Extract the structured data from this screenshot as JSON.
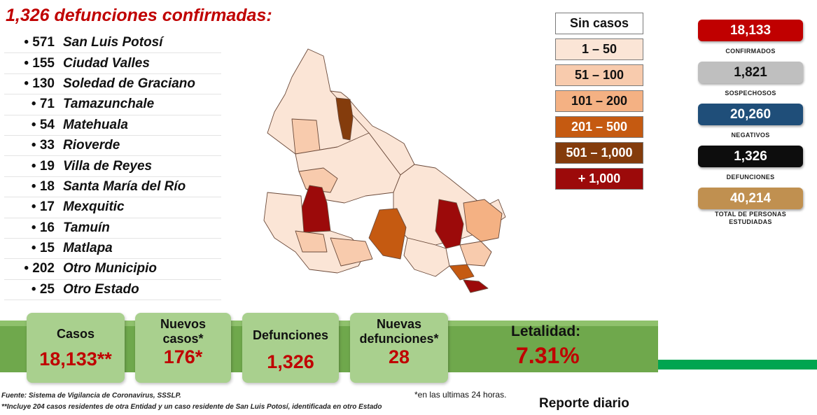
{
  "title": "1,326 defunciones confirmadas:",
  "municipalities": [
    {
      "count": "571",
      "name": "San Luis Potosí"
    },
    {
      "count": "155",
      "name": "Ciudad Valles"
    },
    {
      "count": "130",
      "name": "Soledad de Graciano"
    },
    {
      "count": "71",
      "name": "Tamazunchale"
    },
    {
      "count": "54",
      "name": "Matehuala"
    },
    {
      "count": "33",
      "name": "Rioverde"
    },
    {
      "count": "19",
      "name": "Villa de Reyes"
    },
    {
      "count": "18",
      "name": "Santa María del Río"
    },
    {
      "count": "17",
      "name": "Mexquitic"
    },
    {
      "count": "16",
      "name": "Tamuín"
    },
    {
      "count": "15",
      "name": "Matlapa"
    },
    {
      "count": "202",
      "name": "Otro Municipio"
    },
    {
      "count": "25",
      "name": "Otro Estado"
    }
  ],
  "legend": [
    {
      "label": "Sin casos",
      "color": "#ffffff",
      "text_color": "#111111"
    },
    {
      "label": "1 – 50",
      "color": "#fbe5d6",
      "text_color": "#111111"
    },
    {
      "label": "51 – 100",
      "color": "#f8cbad",
      "text_color": "#111111"
    },
    {
      "label": "101 – 200",
      "color": "#f4b183",
      "text_color": "#111111"
    },
    {
      "label": "201 – 500",
      "color": "#c55a11",
      "text_color": "#ffffff"
    },
    {
      "label": "501 – 1,000",
      "color": "#843c0c",
      "text_color": "#ffffff"
    },
    {
      "label": "+ 1,000",
      "color": "#9c0a0a",
      "text_color": "#ffffff"
    }
  ],
  "stats": [
    {
      "value": "18,133",
      "label": "CONFIRMADOS",
      "color": "#c00000"
    },
    {
      "value": "1,821",
      "label": "SOSPECHOSOS",
      "color": "#bfbfbf",
      "text_color": "#111111"
    },
    {
      "value": "20,260",
      "label": "NEGATIVOS",
      "color": "#1f4e79"
    },
    {
      "value": "1,326",
      "label": "DEFUNCIONES",
      "color": "#0d0d0d"
    },
    {
      "value": "40,214",
      "label_line1": "TOTAL DE PERSONAS",
      "label_line2": "ESTUDIADAS",
      "color": "#c09050"
    }
  ],
  "cards": {
    "casos": {
      "label": "Casos",
      "value": "18,133**"
    },
    "nuevos_casos": {
      "label_line1": "Nuevos",
      "label_line2": "casos*",
      "value": "176*"
    },
    "defunciones": {
      "label": "Defunciones",
      "value": "1,326"
    },
    "nuevas_defunciones": {
      "label_line1": "Nuevas",
      "label_line2": "defunciones*",
      "value": "28"
    },
    "letalidad": {
      "label": "Letalidad:",
      "value": "7.31%"
    }
  },
  "footer": {
    "source": "Fuente: Sistema de Vigilancia de Coronavirus, SSSLP.",
    "note": "**Incluye 204 casos residentes de otra Entidad y un caso residente de San Luis Potosí, identificada en otro Estado",
    "last24": "*en las ultimas 24 horas.",
    "report": "Reporte diario"
  }
}
